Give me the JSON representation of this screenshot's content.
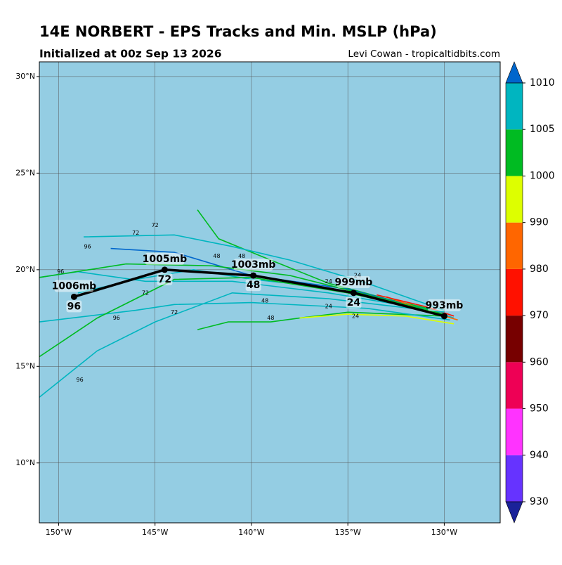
{
  "chart_data": {
    "type": "track-map",
    "title": "14E NORBERT - EPS Tracks and Min. MSLP (hPa)",
    "subtitle": "Initialized at 00z Sep 13 2026",
    "credit": "Levi Cowan - tropicaltidbits.com",
    "xlim": [
      -151,
      -127.1
    ],
    "ylim": [
      6.9,
      30.76
    ],
    "xticks": [
      {
        "value": -150,
        "label": "150°W"
      },
      {
        "value": -145,
        "label": "145°W"
      },
      {
        "value": -140,
        "label": "140°W"
      },
      {
        "value": -135,
        "label": "135°W"
      },
      {
        "value": -130,
        "label": "130°W"
      }
    ],
    "yticks": [
      {
        "value": 10,
        "label": "10°N"
      },
      {
        "value": 15,
        "label": "15°N"
      },
      {
        "value": 20,
        "label": "20°N"
      },
      {
        "value": 25,
        "label": "25°N"
      },
      {
        "value": 30,
        "label": "30°N"
      }
    ],
    "grid": true,
    "members": [
      {
        "color": "#00b5c0",
        "lon": [
          -129.5,
          -131,
          -134,
          -137,
          -140,
          -143,
          -146,
          -149
        ],
        "lat": [
          17.5,
          18,
          18.6,
          19.2,
          19.5,
          20,
          19.5,
          18.8
        ]
      },
      {
        "color": "#00bb22",
        "lon": [
          -130,
          -133,
          -136,
          -139,
          -141.7,
          -142.8
        ],
        "lat": [
          17.8,
          18.5,
          19.3,
          20.5,
          21.6,
          23.1
        ]
      },
      {
        "color": "#00bb22",
        "lon": [
          -130,
          -135,
          -137.5,
          -139,
          -141.2,
          -142.8
        ],
        "lat": [
          17.6,
          17.8,
          17.5,
          17.3,
          17.3,
          16.9
        ]
      },
      {
        "color": "#00b5c0",
        "lon": [
          -129.7,
          -134,
          -140,
          -144,
          -146,
          -151
        ],
        "lat": [
          17.4,
          18,
          18.3,
          18.2,
          17.9,
          17.3
        ]
      },
      {
        "color": "#00b5c0",
        "lon": [
          -130,
          -136,
          -141,
          -145,
          -148,
          -151
        ],
        "lat": [
          17.8,
          18.5,
          18.8,
          17.3,
          15.8,
          13.4
        ]
      },
      {
        "color": "#00bb22",
        "lon": [
          -130,
          -135,
          -140,
          -144,
          -148,
          -151
        ],
        "lat": [
          17.7,
          18.8,
          19.6,
          19.5,
          17.5,
          15.5
        ]
      },
      {
        "color": "#00b5c0",
        "lon": [
          -130,
          -134,
          -138,
          -141,
          -144,
          -148.7
        ],
        "lat": [
          17.9,
          19.3,
          20.5,
          21.2,
          21.8,
          21.7
        ]
      },
      {
        "color": "#0066cc",
        "lon": [
          -130,
          -135,
          -140,
          -144,
          -147.3
        ],
        "lat": [
          17.7,
          19,
          19.7,
          20.9,
          21.1
        ]
      },
      {
        "color": "#ddff00",
        "lon": [
          -129.5,
          -132,
          -135,
          -137.5
        ],
        "lat": [
          17.2,
          17.6,
          17.7,
          17.5
        ]
      },
      {
        "color": "#ff6600",
        "lon": [
          -129.3,
          -131,
          -133
        ],
        "lat": [
          17.4,
          17.9,
          18.6
        ]
      },
      {
        "color": "#ff1100",
        "lon": [
          -129.5,
          -131,
          -133.5
        ],
        "lat": [
          17.6,
          18.1,
          18.7
        ]
      },
      {
        "color": "#00b5c0",
        "lon": [
          -130,
          -136,
          -141,
          -145.5,
          -149,
          -151
        ],
        "lat": [
          17.8,
          18.8,
          19.4,
          19.4,
          19.9,
          19.6
        ]
      },
      {
        "color": "#00bb22",
        "lon": [
          -130,
          -134,
          -138,
          -142,
          -146.5,
          -151
        ],
        "lat": [
          17.7,
          18.7,
          19.7,
          20.2,
          20.3,
          19.6
        ]
      }
    ],
    "hour_labels": [
      {
        "text": "24",
        "lon": -134.5,
        "lat": 19.7
      },
      {
        "text": "24",
        "lon": -136,
        "lat": 19.4
      },
      {
        "text": "24",
        "lon": -136,
        "lat": 18.1
      },
      {
        "text": "24",
        "lon": -134.6,
        "lat": 17.6
      },
      {
        "text": "48",
        "lon": -140.5,
        "lat": 20.7
      },
      {
        "text": "48",
        "lon": -139.3,
        "lat": 18.4
      },
      {
        "text": "48",
        "lon": -141.8,
        "lat": 20.7
      },
      {
        "text": "48",
        "lon": -139,
        "lat": 17.5
      },
      {
        "text": "72",
        "lon": -145,
        "lat": 22.3
      },
      {
        "text": "72",
        "lon": -145.5,
        "lat": 18.8
      },
      {
        "text": "72",
        "lon": -144,
        "lat": 17.8
      },
      {
        "text": "72",
        "lon": -146,
        "lat": 21.9
      },
      {
        "text": "96",
        "lon": -148.5,
        "lat": 21.2
      },
      {
        "text": "96",
        "lon": -149.9,
        "lat": 19.9
      },
      {
        "text": "96",
        "lon": -147,
        "lat": 17.5
      },
      {
        "text": "96",
        "lon": -148.9,
        "lat": 14.3
      }
    ],
    "mean_track": {
      "lon": [
        -130,
        -134.7,
        -139.9,
        -144.5,
        -146.5,
        -149.2
      ],
      "lat": [
        17.6,
        18.8,
        19.7,
        20.0,
        19.4,
        18.6
      ],
      "points": [
        {
          "lon": -130,
          "lat": 17.6,
          "pressure": "993mb"
        },
        {
          "lon": -134.7,
          "lat": 18.8,
          "pressure": "999mb",
          "hour": "24"
        },
        {
          "lon": -139.9,
          "lat": 19.7,
          "pressure": "1003mb",
          "hour": "48"
        },
        {
          "lon": -144.5,
          "lat": 20.0,
          "pressure": "1005mb",
          "hour": "72"
        },
        {
          "lon": -149.2,
          "lat": 18.6,
          "pressure": "1006mb",
          "hour": "96"
        }
      ]
    },
    "colorbar": {
      "levels": [
        930,
        940,
        950,
        960,
        970,
        980,
        990,
        1000,
        1005,
        1010
      ],
      "colors": [
        "#6633ff",
        "#ff33ff",
        "#ee0055",
        "#770000",
        "#ff1100",
        "#ff6600",
        "#ddff00",
        "#00bb22",
        "#00b5c0"
      ],
      "under_color": "#1a2299",
      "over_color": "#0066cc"
    }
  }
}
